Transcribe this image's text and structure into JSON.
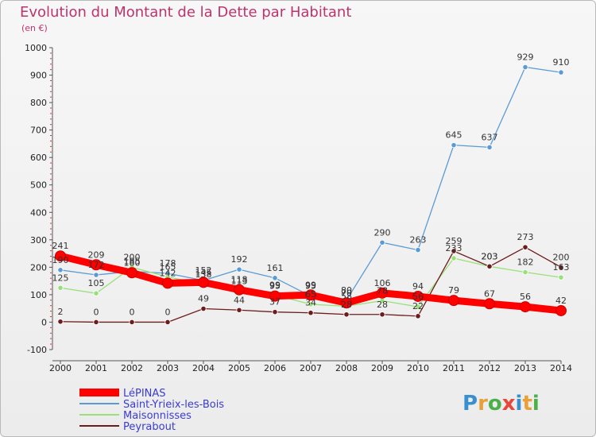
{
  "header": {
    "title": "Evolution du Montant de la Dette par Habitant",
    "unit": "(en €)"
  },
  "logo": {
    "text": "Proxiti"
  },
  "colors": {
    "title": "#c0336a",
    "legend_text": "#3b3bd4",
    "grid": "#cccccc"
  },
  "chart_data": {
    "type": "line",
    "title": "Evolution du Montant de la Dette par Habitant",
    "subtitle": "(en €)",
    "xlabel": "",
    "ylabel": "",
    "x": [
      "2000",
      "2001",
      "2002",
      "2003",
      "2004",
      "2005",
      "2006",
      "2007",
      "2008",
      "2009",
      "2010",
      "2011",
      "2012",
      "2013",
      "2014"
    ],
    "ylim": [
      -100,
      1000
    ],
    "yticks": [
      -100,
      0,
      100,
      200,
      300,
      400,
      500,
      600,
      700,
      800,
      900,
      1000
    ],
    "grid": false,
    "legend_position": "bottom-left",
    "series": [
      {
        "name": "LéPINAS",
        "color": "#ff0000",
        "width": 9,
        "values": [
          241,
          209,
          180,
          142,
          145,
          118,
          95,
          99,
          70,
          106,
          94,
          79,
          67,
          56,
          42
        ]
      },
      {
        "name": "Saint-Yrieix-les-Bois",
        "color": "#5b9bd5",
        "width": 1.3,
        "values": [
          190,
          172,
          185,
          178,
          152,
          192,
          161,
          95,
          80,
          290,
          263,
          645,
          637,
          929,
          910
        ]
      },
      {
        "name": "Maisonnisses",
        "color": "#99e07a",
        "width": 1.3,
        "values": [
          125,
          105,
          200,
          165,
          138,
          113,
          99,
          65,
          58,
          78,
          56,
          233,
          203,
          182,
          163
        ]
      },
      {
        "name": "Peyrabout",
        "color": "#6b1c1c",
        "width": 1.3,
        "values": [
          2,
          0,
          0,
          0,
          49,
          44,
          37,
          34,
          28,
          28,
          22,
          259,
          203,
          273,
          200
        ]
      }
    ],
    "data_labels": [
      [
        "241",
        "209",
        "180",
        "142",
        "145",
        "118",
        "95",
        "99",
        "70",
        "106",
        "94",
        "79",
        "67",
        "56",
        "42"
      ],
      [
        "190",
        "172",
        "185",
        "178",
        "152",
        "192",
        "161",
        "95",
        "80",
        "290",
        "263",
        "645",
        "637",
        "929",
        "910"
      ],
      [
        "125",
        "105",
        "200",
        "165",
        "138",
        "113",
        "99",
        "65",
        "58",
        "78",
        "56",
        "233",
        "203",
        "182",
        "163"
      ],
      [
        "2",
        "0",
        "0",
        "0",
        "49",
        "44",
        "37",
        "34",
        "28",
        "28",
        "22",
        "259",
        "203",
        "273",
        "200"
      ]
    ]
  }
}
